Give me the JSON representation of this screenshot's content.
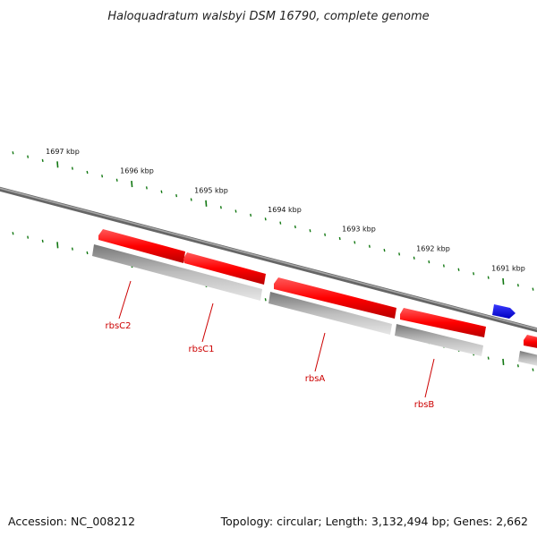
{
  "title": "Haloquadratum walsbyi DSM 16790, complete genome",
  "ruler": {
    "tick_labels": [
      "1697 kbp",
      "1696 kbp",
      "1695 kbp",
      "1694 kbp",
      "1693 kbp",
      "1692 kbp",
      "1691 kbp"
    ]
  },
  "genes": [
    {
      "name": "rbsC2",
      "strand": "forward",
      "color": "#ff0000"
    },
    {
      "name": "rbsC1",
      "strand": "forward",
      "color": "#ff0000"
    },
    {
      "name": "rbsA",
      "strand": "forward",
      "color": "#ff0000"
    },
    {
      "name": "rbsB",
      "strand": "forward",
      "color": "#ff0000"
    },
    {
      "name": "",
      "strand": "reverse",
      "color": "#0000ee"
    },
    {
      "name": "",
      "strand": "forward",
      "color": "#ff0000"
    }
  ],
  "colors": {
    "backbone": "#777777",
    "ticks": "#117711",
    "gene_shadow": "#a8a8a8",
    "label": "#cc0000"
  },
  "footer": {
    "accession": "Accession: NC_008212",
    "summary": "Topology: circular; Length: 3,132,494 bp; Genes: 2,662"
  }
}
